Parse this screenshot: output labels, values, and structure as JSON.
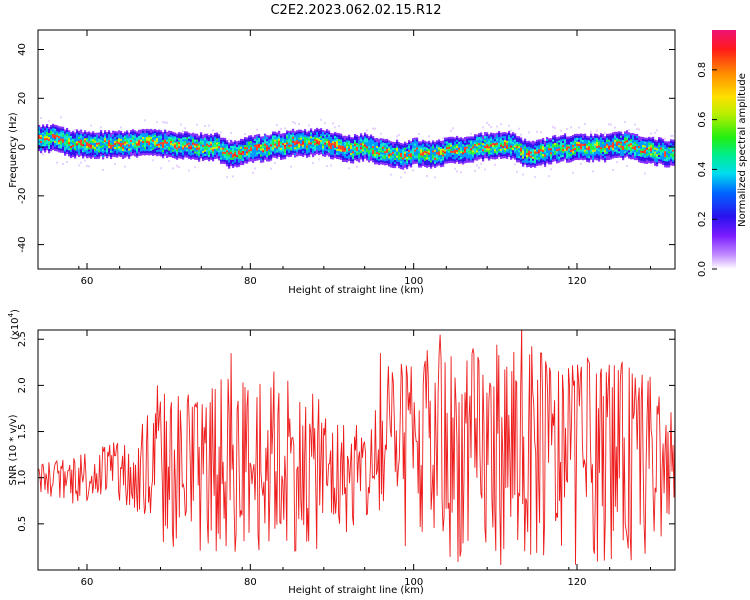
{
  "title": "C2E2.2023.062.02.15.R12",
  "chart_data": [
    {
      "type": "heatmap",
      "xlabel": "Height of straight line (km)",
      "ylabel": "Frequency (Hz)",
      "xlim": [
        54,
        132
      ],
      "ylim": [
        -50,
        48
      ],
      "xticks": [
        60,
        80,
        100,
        120
      ],
      "yticks": [
        40,
        20,
        0,
        -20,
        -40
      ],
      "ridge": {
        "x": [
          54,
          56,
          58,
          60,
          62,
          64,
          66,
          68,
          70,
          72,
          74,
          76,
          77,
          78,
          80,
          82,
          84,
          85,
          86,
          88,
          90,
          92,
          94,
          96,
          98,
          99,
          100,
          102,
          104,
          106,
          108,
          110,
          112,
          113,
          114,
          116,
          118,
          120,
          122,
          124,
          126,
          128,
          130,
          132
        ],
        "y": [
          3.5,
          3.5,
          1.5,
          1,
          1,
          1,
          1.5,
          1.5,
          1,
          0.5,
          0,
          0,
          -3,
          -3,
          -1,
          0,
          1,
          2,
          1,
          2,
          1,
          -1,
          0,
          -2,
          -3,
          -3.5,
          -2,
          -3,
          -2,
          -1,
          0,
          1,
          0.5,
          -2,
          -3,
          -2,
          -0.5,
          0,
          -0.5,
          0,
          1,
          -1,
          -2,
          -3
        ]
      },
      "colorbar": {
        "label": "Normalized spectral amplitude",
        "ticks": [
          "0.0",
          "0.2",
          "0.4",
          "0.6",
          "0.8"
        ],
        "range": [
          0,
          0.96
        ]
      }
    },
    {
      "type": "line",
      "xlabel": "Height of straight line (km)",
      "ylabel": "SNR (10 * v/v)",
      "scale_label": "(x10",
      "scale_exp": "4",
      "scale_close": ")",
      "xlim": [
        54,
        132
      ],
      "ylim": [
        0.0,
        2.6
      ],
      "xticks": [
        60,
        80,
        100,
        120
      ],
      "yticks": [
        "0.5",
        "1.0",
        "1.5",
        "2.0",
        "2.5"
      ],
      "color": "#ee1c1c",
      "envelope": {
        "x": [
          54,
          58,
          62,
          66,
          67,
          70,
          74,
          78,
          80,
          84,
          88,
          92,
          95,
          96,
          98,
          100,
          104,
          108,
          112,
          116,
          120,
          124,
          128,
          132
        ],
        "low": [
          0.85,
          0.7,
          0.75,
          0.55,
          0.25,
          0.2,
          0.15,
          0.15,
          0.15,
          0.2,
          0.2,
          0.4,
          0.45,
          0.3,
          0.15,
          0.15,
          0.1,
          0.05,
          0.05,
          0.05,
          0.05,
          0.1,
          0.1,
          0.3
        ],
        "high": [
          1.15,
          1.25,
          1.4,
          1.35,
          1.8,
          2.0,
          1.9,
          2.2,
          2.05,
          2.0,
          1.9,
          1.6,
          1.65,
          2.3,
          2.2,
          2.35,
          2.45,
          2.4,
          2.5,
          2.4,
          2.25,
          2.3,
          2.2,
          1.9
        ]
      },
      "peaks": [
        {
          "x": 68.6,
          "y": 2.0
        },
        {
          "x": 72.4,
          "y": 1.9
        },
        {
          "x": 77.6,
          "y": 2.35
        },
        {
          "x": 82.9,
          "y": 2.15
        },
        {
          "x": 84.6,
          "y": 2.05
        },
        {
          "x": 88.4,
          "y": 1.85
        },
        {
          "x": 95.9,
          "y": 2.35
        },
        {
          "x": 99.2,
          "y": 2.1
        },
        {
          "x": 103.2,
          "y": 2.55
        },
        {
          "x": 107.3,
          "y": 2.4
        },
        {
          "x": 113.2,
          "y": 2.65
        },
        {
          "x": 115.6,
          "y": 2.35
        },
        {
          "x": 121.3,
          "y": 2.3
        },
        {
          "x": 128.7,
          "y": 2.05
        }
      ]
    }
  ]
}
